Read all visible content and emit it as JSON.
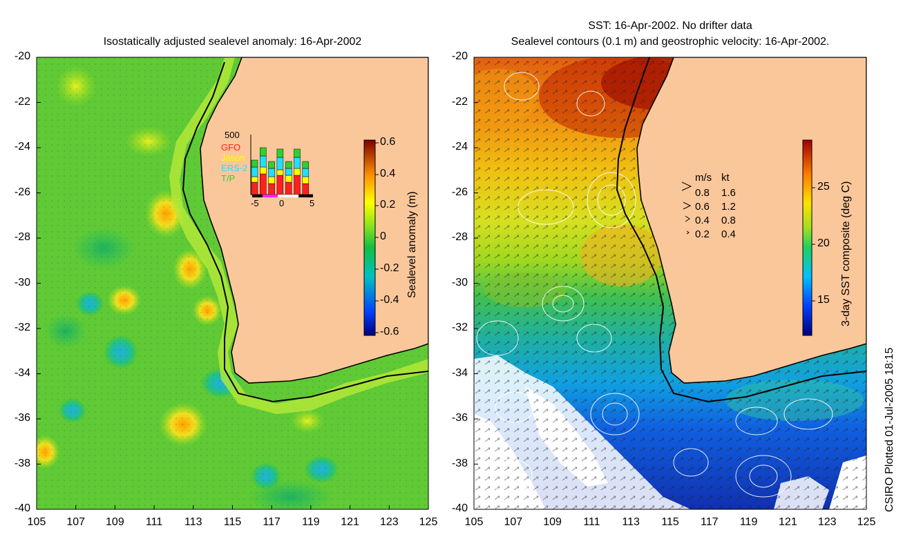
{
  "left_panel": {
    "title": "Isostatically adjusted sealevel anomaly: 16-Apr-2002",
    "lat_ticks": [
      "-20",
      "-22",
      "-24",
      "-26",
      "-28",
      "-30",
      "-32",
      "-34",
      "-36",
      "-38",
      "-40"
    ],
    "lon_ticks": [
      "105",
      "107",
      "109",
      "111",
      "113",
      "115",
      "117",
      "119",
      "121",
      "123",
      "125"
    ],
    "colorbar": {
      "label": "Sealevel anomaly (m)",
      "ticks": [
        "0.6",
        "0.4",
        "0.2",
        "0",
        "-0.2",
        "-0.4",
        "-0.6"
      ],
      "range": [
        -0.6,
        0.6
      ]
    },
    "inset": {
      "ymax_label": "500",
      "satellites": [
        {
          "name": "GFO",
          "color": "#ff2020"
        },
        {
          "name": "Jason",
          "color": "#ffff00"
        },
        {
          "name": "ERS-2",
          "color": "#20e0ff"
        },
        {
          "name": "T/P",
          "color": "#30d030"
        }
      ],
      "x_ticks": [
        "-5",
        "0",
        "5"
      ]
    }
  },
  "right_panel": {
    "title_line1": "SST: 16-Apr-2002. No drifter data",
    "title_line2": "Sealevel contours (0.1 m) and geostrophic velocity: 16-Apr-2002.",
    "lat_ticks": [
      "-20",
      "-22",
      "-24",
      "-26",
      "-28",
      "-30",
      "-32",
      "-34",
      "-36",
      "-38",
      "-40"
    ],
    "lon_ticks": [
      "105",
      "107",
      "109",
      "111",
      "113",
      "115",
      "117",
      "119",
      "121",
      "123",
      "125"
    ],
    "colorbar": {
      "label": "3-day SST composite (deg C)",
      "ticks": [
        "25",
        "20",
        "15"
      ]
    },
    "velocity_legend": {
      "header_ms": "m/s",
      "header_kt": "kt",
      "rows": [
        {
          "ms": "0.8",
          "kt": "1.6"
        },
        {
          "ms": "0.6",
          "kt": "1.2"
        },
        {
          "ms": "0.4",
          "kt": "0.8"
        },
        {
          "ms": "0.2",
          "kt": "0.4"
        }
      ]
    }
  },
  "footer": {
    "credit": "CSIRO Plotted 01-Jul-2005 18:15"
  },
  "colors": {
    "land": "#fac79b",
    "coast": "#000000",
    "contour": "#ffffff"
  }
}
